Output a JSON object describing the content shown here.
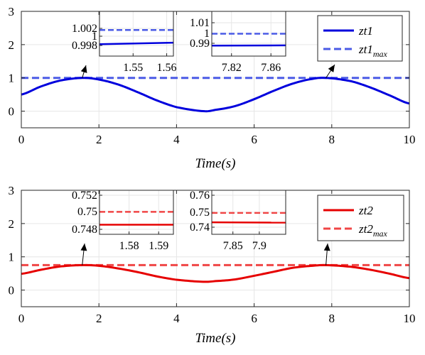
{
  "colors": {
    "series1": "#0000dd",
    "max1": "#4a5ae6",
    "series2": "#e60000",
    "max2": "#f04646",
    "grid": "#e6e6e6",
    "axis": "#262626"
  },
  "chart_data": [
    {
      "type": "line",
      "xlabel": "Time(s)",
      "xlim": [
        0,
        10
      ],
      "ylim": [
        -0.5,
        3
      ],
      "xticks": [
        0,
        2,
        4,
        6,
        8,
        10
      ],
      "yticks": [
        0,
        1,
        2,
        3
      ],
      "grid": true,
      "legend_position": "top-right",
      "series": [
        {
          "name": "zt1",
          "style": "solid",
          "color": "#0000dd",
          "x": [
            0,
            0.5,
            1,
            1.57,
            2,
            2.5,
            3,
            3.5,
            4,
            4.71,
            5,
            5.5,
            6,
            6.5,
            7,
            7.5,
            7.85,
            8.5,
            9,
            9.5,
            10
          ],
          "y": [
            0.5,
            0.74,
            0.92,
            1.0,
            0.95,
            0.8,
            0.57,
            0.32,
            0.12,
            0.0,
            0.04,
            0.15,
            0.36,
            0.61,
            0.83,
            0.97,
            1.0,
            0.9,
            0.71,
            0.47,
            0.23
          ]
        },
        {
          "name": "zt1",
          "name_sub": "max",
          "style": "dashed",
          "color": "#4a5ae6",
          "x": [
            0,
            10
          ],
          "y": [
            1.0,
            1.0
          ]
        }
      ],
      "insets": [
        {
          "xlim": [
            1.54,
            1.562
          ],
          "ylim": [
            0.9965,
            1.0025
          ],
          "xticks": [
            "1.55",
            "1.56"
          ],
          "yticks": [
            "1.002",
            "1",
            "0.998"
          ],
          "series_values": {
            "zt1": [
              0.9981,
              0.9983
            ],
            "zt1_max": [
              1.0,
              1.0
            ]
          },
          "points_to_x": 1.57
        },
        {
          "xlim": [
            7.8,
            7.875
          ],
          "ylim": [
            0.985,
            1.015
          ],
          "xticks": [
            "7.82",
            "7.86"
          ],
          "yticks": [
            "1.01",
            "1",
            "0.99"
          ],
          "series_values": {
            "zt1": [
              0.992,
              0.9922
            ],
            "zt1_max": [
              1.0,
              1.0
            ]
          },
          "points_to_x": 7.85
        }
      ]
    },
    {
      "type": "line",
      "xlabel": "Time(s)",
      "xlim": [
        0,
        10
      ],
      "ylim": [
        -0.5,
        3
      ],
      "xticks": [
        0,
        2,
        4,
        6,
        8,
        10
      ],
      "yticks": [
        0,
        1,
        2,
        3
      ],
      "grid": true,
      "legend_position": "top-right",
      "series": [
        {
          "name": "zt2",
          "style": "solid",
          "color": "#e60000",
          "x": [
            0,
            0.5,
            1,
            1.57,
            2,
            2.5,
            3,
            3.5,
            4,
            4.71,
            5,
            5.5,
            6,
            6.5,
            7,
            7.5,
            7.85,
            8.5,
            9,
            9.5,
            10
          ],
          "y": [
            0.49,
            0.61,
            0.71,
            0.75,
            0.73,
            0.65,
            0.54,
            0.41,
            0.31,
            0.25,
            0.27,
            0.32,
            0.43,
            0.55,
            0.67,
            0.73,
            0.75,
            0.7,
            0.61,
            0.49,
            0.36
          ]
        },
        {
          "name": "zt2",
          "name_sub": "max",
          "style": "dashed",
          "color": "#f04646",
          "x": [
            0,
            10
          ],
          "y": [
            0.75,
            0.75
          ]
        }
      ],
      "insets": [
        {
          "xlim": [
            1.57,
            1.595
          ],
          "ylim": [
            0.7472,
            0.7527
          ],
          "xticks": [
            "1.58",
            "1.59"
          ],
          "yticks": [
            "0.752",
            "0.75",
            "0.748"
          ],
          "series_values": {
            "zt2": [
              0.7484,
              0.7484
            ],
            "zt2_max": [
              0.75,
              0.75
            ]
          },
          "points_to_x": 1.57
        },
        {
          "xlim": [
            7.81,
            7.95
          ],
          "ylim": [
            0.733,
            0.768
          ],
          "xticks": [
            "7.85",
            "7.9"
          ],
          "yticks": [
            "0.76",
            "0.75",
            "0.74"
          ],
          "series_values": {
            "zt2": [
              0.7425,
              0.7423
            ],
            "zt2_max": [
              0.75,
              0.75
            ]
          },
          "points_to_x": 7.85
        }
      ]
    }
  ]
}
